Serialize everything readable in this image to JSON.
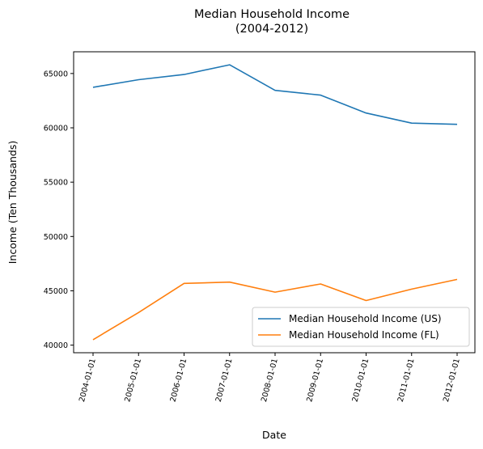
{
  "chart_data": {
    "type": "line",
    "title": [
      "Median Household Income",
      "(2004-2012)"
    ],
    "xlabel": "Date",
    "ylabel": "Income (Ten Thousands)",
    "categories": [
      "2004-01-01",
      "2005-01-01",
      "2006-01-01",
      "2007-01-01",
      "2008-01-01",
      "2009-01-01",
      "2010-01-01",
      "2011-01-01",
      "2012-01-01"
    ],
    "ylim": [
      39300,
      67000
    ],
    "yticks": [
      40000,
      45000,
      50000,
      55000,
      60000,
      65000
    ],
    "grid": false,
    "legend_position": "lower-right",
    "series": [
      {
        "name": "Median Household Income (US)",
        "color": "#1f77b4",
        "values": [
          63730,
          64430,
          64910,
          65800,
          63450,
          63010,
          61360,
          60430,
          60320
        ]
      },
      {
        "name": "Median Household Income (FL)",
        "color": "#ff7f0e",
        "values": [
          40500,
          43000,
          45680,
          45800,
          44880,
          45630,
          44100,
          45150,
          46050
        ]
      }
    ]
  }
}
